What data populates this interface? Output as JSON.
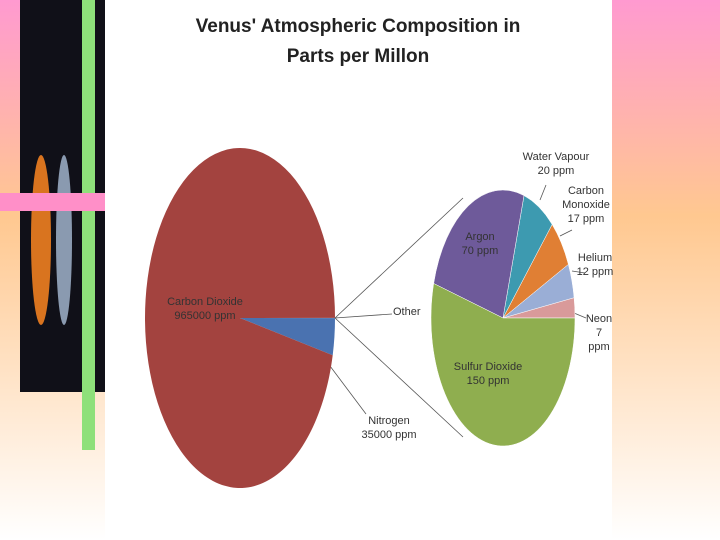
{
  "chart_data": {
    "type": "pie-of-pie",
    "title": "Venus' Atmospheric Composition in Parts per Millon",
    "main": {
      "categories": [
        "Carbon Dioxide",
        "Nitrogen"
      ],
      "values": [
        965000,
        35000
      ],
      "value_labels": [
        "965000 ppm",
        "35000 ppm"
      ],
      "colors": [
        "#a3433f",
        "#4a72b0"
      ]
    },
    "other_label": "Other",
    "secondary": {
      "categories": [
        "Sulfur Dioxide",
        "Argon",
        "Water Vapour",
        "Carbon Monoxide",
        "Helium",
        "Neon"
      ],
      "values": [
        150,
        70,
        20,
        17,
        12,
        7
      ],
      "value_labels": [
        "150 ppm",
        "70 ppm",
        "20 ppm",
        "17 ppm",
        "12 ppm",
        "7 ppm"
      ],
      "colors": [
        "#8fae4f",
        "#6e5a9a",
        "#3d9ab0",
        "#e07f34",
        "#9aaed6",
        "#d99a9a"
      ]
    }
  }
}
